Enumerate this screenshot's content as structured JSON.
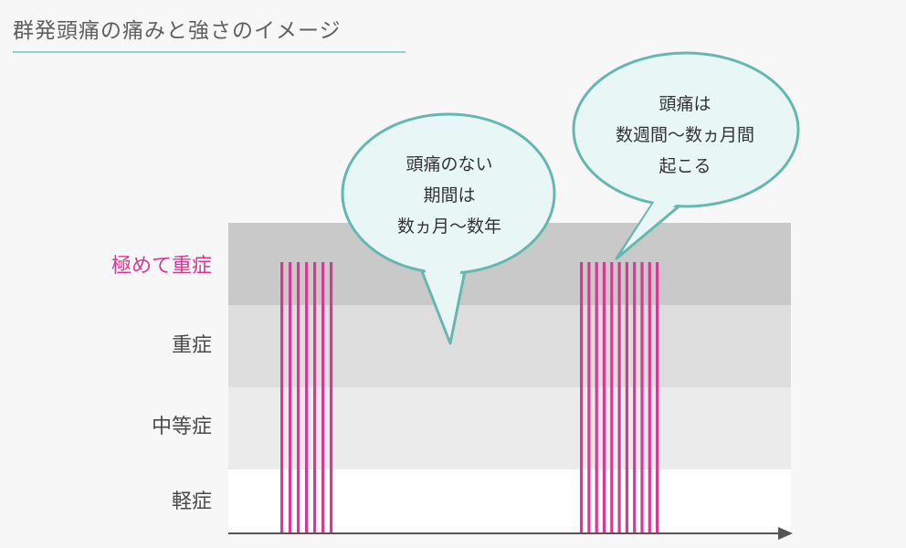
{
  "title": "群発頭痛の痛みと強さのイメージ",
  "colors": {
    "accent_pink": "#d83a93",
    "accent_teal": "#8ed1cd",
    "bubble_fill": "#e8f7f6",
    "bubble_stroke": "#67b7b1"
  },
  "chart_data": {
    "type": "bar",
    "title": "群発頭痛の痛みと強さのイメージ",
    "xlabel": "",
    "ylabel": "",
    "levels": [
      "極めて重症",
      "重症",
      "中等症",
      "軽症"
    ],
    "series": [
      {
        "values": [
          1,
          1,
          1,
          1,
          1,
          1,
          1
        ]
      },
      {
        "values": [
          1,
          1,
          1,
          1,
          1,
          1,
          1,
          1,
          1,
          1,
          1
        ]
      }
    ],
    "annotations": [
      {
        "lines": [
          "頭痛のない",
          "期間は",
          "数ヵ月〜数年"
        ]
      },
      {
        "lines": [
          "頭痛は",
          "数週間〜数ヵ月間",
          "起こる"
        ]
      }
    ],
    "grid": false,
    "legend": "none"
  }
}
